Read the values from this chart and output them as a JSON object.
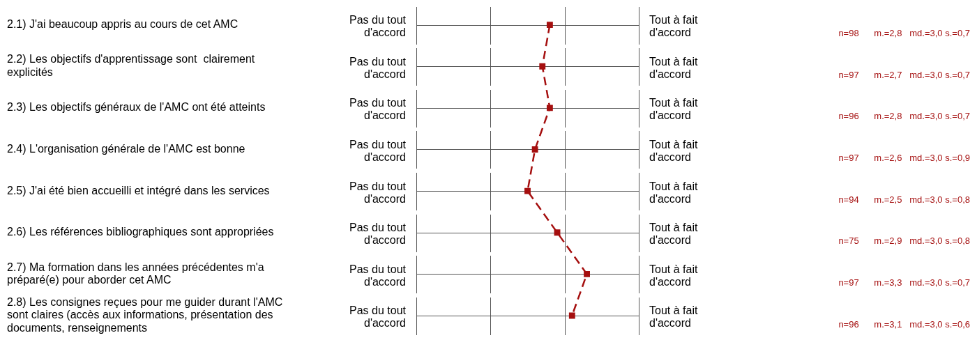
{
  "chart_data": {
    "type": "line",
    "orientation": "horizontal",
    "categories": [
      "2.1) J'ai beaucoup appris au cours de cet AMC",
      "2.2) Les objectifs d'apprentissage sont  clairement explicités",
      "2.3) Les objectifs généraux de l'AMC ont été atteints",
      "2.4) L'organisation générale de l'AMC est bonne",
      "2.5) J'ai été bien accueilli et intégré dans les services",
      "2.6) Les références bibliographiques sont appropriées",
      "2.7) Ma formation dans les années précédentes m'a préparé(e) pour aborder cet AMC",
      "2.8) Les consignes reçues pour me guider durant l'AMC sont claires (accès aux informations, présentation des documents, renseignements"
    ],
    "values": [
      2.8,
      2.7,
      2.8,
      2.6,
      2.5,
      2.9,
      3.3,
      3.1
    ],
    "value_labels": [
      "n=98      m.=2,8   md.=3,0 s.=0,7",
      "n=97      m.=2,7   md.=3,0 s.=0,7",
      "n=96      m.=2,8   md.=3,0 s.=0,7",
      "n=97      m.=2,6   md.=3,0 s.=0,9",
      "n=94      m.=2,5   md.=3,0 s.=0,8",
      "n=75      m.=2,9   md.=3,0 s.=0,8",
      "n=97      m.=3,3   md.=3,0 s.=0,7",
      "n=96      m.=3,1   md.=3,0 s.=0,6"
    ],
    "color": "#a50f0f",
    "xlim": [
      1,
      4
    ],
    "annotations": [
      "Pas du tout\nd'accord",
      "Tout à fait\nd'accord"
    ],
    "grid": true,
    "tick_labels": "y",
    "marker": "square",
    "line_style": "dashed",
    "legend": false
  }
}
